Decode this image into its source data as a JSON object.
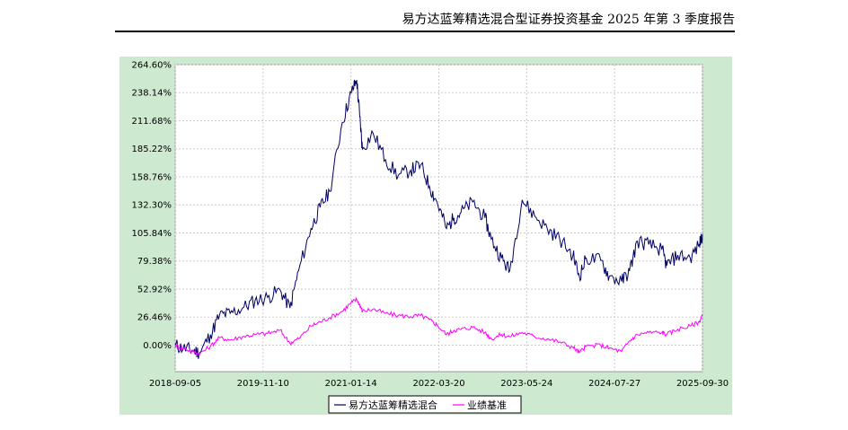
{
  "header": {
    "text": "易方达蓝筹精选混合型证券投资基金 2025 年第 3 季度报告"
  },
  "chart_data": {
    "type": "line",
    "title": "",
    "xlabel": "",
    "ylabel": "",
    "grid": true,
    "legend_placement": "bottom-center",
    "y_ticks": [
      "264.60%",
      "238.14%",
      "211.68%",
      "185.22%",
      "158.76%",
      "132.30%",
      "105.84%",
      "79.38%",
      "52.92%",
      "26.46%",
      "0.00%"
    ],
    "y_tick_values": [
      264.6,
      238.14,
      211.68,
      185.22,
      158.76,
      132.3,
      105.84,
      79.38,
      52.92,
      26.46,
      0.0
    ],
    "x_ticks": [
      "2018-09-05",
      "2019-11-10",
      "2021-01-14",
      "2022-03-20",
      "2023-05-24",
      "2024-07-27",
      "2025-09-30"
    ],
    "ylim": [
      -25,
      264.6
    ],
    "xlim": [
      "2018-09-05",
      "2025-09-30"
    ],
    "series": [
      {
        "name": "易方达蓝筹精选混合",
        "color": "#000066",
        "x": [
          "2018-09-05",
          "2018-10-15",
          "2018-12-01",
          "2019-01-04",
          "2019-02-25",
          "2019-04-10",
          "2019-06-01",
          "2019-08-01",
          "2019-10-01",
          "2019-12-01",
          "2020-02-01",
          "2020-03-20",
          "2020-05-01",
          "2020-07-01",
          "2020-08-15",
          "2020-10-01",
          "2020-12-01",
          "2021-01-14",
          "2021-02-10",
          "2021-02-25",
          "2021-03-10",
          "2021-05-01",
          "2021-07-01",
          "2021-09-01",
          "2021-11-01",
          "2021-12-20",
          "2022-02-01",
          "2022-03-10",
          "2022-04-26",
          "2022-06-01",
          "2022-07-05",
          "2022-09-01",
          "2022-10-31",
          "2022-12-01",
          "2023-01-20",
          "2023-03-01",
          "2023-05-01",
          "2023-07-01",
          "2023-09-01",
          "2023-11-01",
          "2024-01-05",
          "2024-02-05",
          "2024-03-10",
          "2024-05-20",
          "2024-07-01",
          "2024-08-30",
          "2024-10-08",
          "2024-11-15",
          "2025-01-10",
          "2025-03-15",
          "2025-04-08",
          "2025-06-01",
          "2025-08-01",
          "2025-09-15",
          "2025-09-30"
        ],
        "y": [
          0,
          -3,
          -5,
          -7,
          10,
          28,
          30,
          35,
          42,
          45,
          52,
          35,
          70,
          110,
          130,
          145,
          210,
          238,
          250,
          215,
          185,
          200,
          175,
          160,
          165,
          170,
          150,
          135,
          110,
          120,
          125,
          135,
          120,
          100,
          82,
          70,
          137,
          122,
          110,
          100,
          85,
          65,
          82,
          80,
          65,
          60,
          70,
          98,
          95,
          90,
          75,
          85,
          82,
          95,
          105
        ]
      },
      {
        "name": "业绩基准",
        "color": "#ff00ff",
        "x": [
          "2018-09-05",
          "2018-10-15",
          "2018-12-01",
          "2019-01-04",
          "2019-02-25",
          "2019-04-10",
          "2019-06-01",
          "2019-08-01",
          "2019-10-01",
          "2019-12-01",
          "2020-02-01",
          "2020-03-20",
          "2020-05-01",
          "2020-07-01",
          "2020-08-15",
          "2020-10-01",
          "2020-12-01",
          "2021-01-14",
          "2021-02-10",
          "2021-02-25",
          "2021-03-10",
          "2021-05-01",
          "2021-07-01",
          "2021-09-01",
          "2021-11-01",
          "2021-12-20",
          "2022-02-01",
          "2022-03-10",
          "2022-04-26",
          "2022-06-01",
          "2022-07-05",
          "2022-09-01",
          "2022-10-31",
          "2022-12-01",
          "2023-01-20",
          "2023-03-01",
          "2023-05-01",
          "2023-07-01",
          "2023-09-01",
          "2023-11-01",
          "2024-01-05",
          "2024-02-05",
          "2024-03-10",
          "2024-05-20",
          "2024-07-01",
          "2024-08-30",
          "2024-10-08",
          "2024-11-15",
          "2025-01-10",
          "2025-03-15",
          "2025-04-08",
          "2025-06-01",
          "2025-08-01",
          "2025-09-15",
          "2025-09-30"
        ],
        "y": [
          0,
          -3,
          -6,
          -8,
          -1,
          7,
          5,
          8,
          10,
          11,
          14,
          2,
          6,
          18,
          22,
          26,
          32,
          40,
          43,
          38,
          32,
          34,
          30,
          28,
          27,
          28,
          24,
          19,
          10,
          14,
          15,
          17,
          12,
          6,
          10,
          8,
          12,
          8,
          6,
          3,
          -2,
          -7,
          -1,
          0,
          -3,
          -6,
          4,
          10,
          12,
          12,
          10,
          15,
          18,
          22,
          29
        ]
      }
    ]
  }
}
